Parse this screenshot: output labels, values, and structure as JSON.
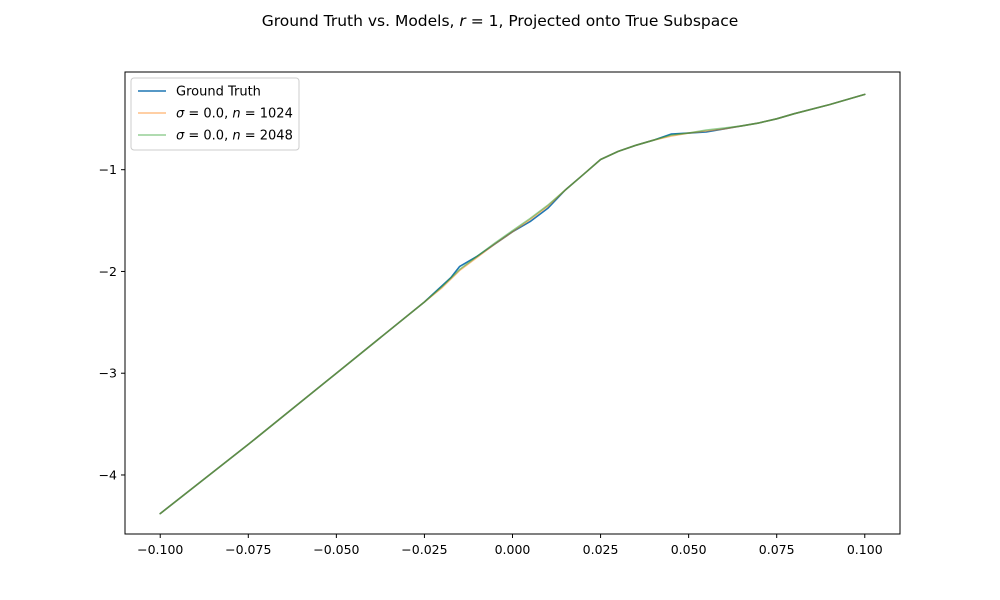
{
  "chart_data": {
    "type": "line",
    "title": "Ground Truth vs. Models, r = 1, Projected onto True Subspace",
    "title_parts": {
      "prefix": "Ground Truth vs. Models, ",
      "var": "r",
      "eq": " = 1",
      "suffix": ", Projected onto True Subspace"
    },
    "xlabel": "",
    "ylabel": "",
    "xlim": [
      -0.11,
      0.11
    ],
    "ylim": [
      -4.58,
      -0.04
    ],
    "xticks": [
      -0.1,
      -0.075,
      -0.05,
      -0.025,
      0.0,
      0.025,
      0.05,
      0.075,
      0.1
    ],
    "xtick_labels": [
      "−0.100",
      "−0.075",
      "−0.050",
      "−0.025",
      "0.000",
      "0.025",
      "0.050",
      "0.075",
      "0.100"
    ],
    "yticks": [
      -4,
      -3,
      -2,
      -1
    ],
    "ytick_labels": [
      "−4",
      "−3",
      "−2",
      "−1"
    ],
    "grid": false,
    "legend_position": "top-left",
    "series": [
      {
        "name": "Ground Truth",
        "color": "#1f77b4",
        "alpha": 1.0,
        "x": [
          -0.1,
          -0.075,
          -0.05,
          -0.025,
          -0.0175,
          -0.015,
          -0.01,
          -0.005,
          0.0,
          0.005,
          0.01,
          0.0125,
          0.015,
          0.02,
          0.025,
          0.03,
          0.035,
          0.04,
          0.045,
          0.05,
          0.055,
          0.06,
          0.065,
          0.07,
          0.075,
          0.08,
          0.09,
          0.1
        ],
        "y": [
          -4.38,
          -3.7,
          -3.0,
          -2.3,
          -2.06,
          -1.95,
          -1.85,
          -1.73,
          -1.61,
          -1.51,
          -1.38,
          -1.29,
          -1.2,
          -1.05,
          -0.9,
          -0.82,
          -0.76,
          -0.71,
          -0.65,
          -0.64,
          -0.63,
          -0.6,
          -0.57,
          -0.54,
          -0.5,
          -0.45,
          -0.36,
          -0.26
        ]
      },
      {
        "name": "σ = 0.0, n = 1024",
        "label_parts": {
          "sigma": "σ",
          "sigma_val": " = 0.0, ",
          "n": "n",
          "n_val": " = 1024"
        },
        "color": "#ff7f0e",
        "alpha": 0.5,
        "x": [
          -0.1,
          -0.075,
          -0.05,
          -0.025,
          -0.02,
          -0.015,
          -0.01,
          -0.005,
          0.0,
          0.005,
          0.01,
          0.015,
          0.02,
          0.025,
          0.03,
          0.035,
          0.04,
          0.045,
          0.05,
          0.055,
          0.06,
          0.065,
          0.07,
          0.075,
          0.08,
          0.09,
          0.1
        ],
        "y": [
          -4.38,
          -3.7,
          -3.0,
          -2.3,
          -2.16,
          -1.99,
          -1.86,
          -1.73,
          -1.61,
          -1.49,
          -1.36,
          -1.2,
          -1.05,
          -0.9,
          -0.82,
          -0.76,
          -0.71,
          -0.67,
          -0.64,
          -0.62,
          -0.6,
          -0.57,
          -0.54,
          -0.5,
          -0.45,
          -0.36,
          -0.26
        ]
      },
      {
        "name": "σ = 0.0, n = 2048",
        "label_parts": {
          "sigma": "σ",
          "sigma_val": " = 0.0, ",
          "n": "n",
          "n_val": " = 2048"
        },
        "color": "#2ca02c",
        "alpha": 0.5,
        "x": [
          -0.1,
          -0.075,
          -0.05,
          -0.025,
          -0.02,
          -0.015,
          -0.01,
          -0.005,
          0.0,
          0.005,
          0.01,
          0.015,
          0.02,
          0.025,
          0.03,
          0.035,
          0.04,
          0.045,
          0.05,
          0.055,
          0.06,
          0.065,
          0.07,
          0.075,
          0.08,
          0.09,
          0.1
        ],
        "y": [
          -4.38,
          -3.7,
          -3.0,
          -2.3,
          -2.15,
          -1.98,
          -1.85,
          -1.72,
          -1.6,
          -1.48,
          -1.35,
          -1.2,
          -1.05,
          -0.9,
          -0.82,
          -0.76,
          -0.71,
          -0.66,
          -0.64,
          -0.61,
          -0.59,
          -0.57,
          -0.54,
          -0.5,
          -0.45,
          -0.36,
          -0.26
        ]
      }
    ]
  }
}
